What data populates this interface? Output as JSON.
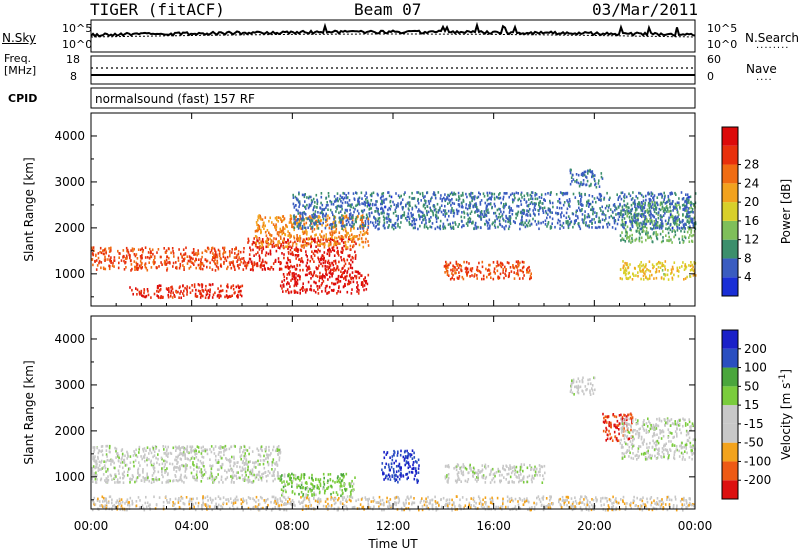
{
  "header": {
    "station": "TIGER (fitACF)",
    "beam": "Beam 07",
    "date": "03/Mar/2011"
  },
  "params_panel": {
    "nsky_label": "N.Sky",
    "nsearch_label": "N.Search",
    "nsky_ticks": [
      "10^5",
      "10^0"
    ],
    "nsky_right_ticks": [
      "10^5",
      "10^0"
    ],
    "freq_label_line1": "Freq.",
    "freq_label_line2": "[MHz]",
    "freq_ticks": [
      "18",
      "8"
    ],
    "nave_label": "Nave",
    "nave_ticks": [
      "60",
      "0"
    ],
    "cpid_label": "CPID",
    "cpid_text": "normalsound (fast) 157 RF"
  },
  "colors": {
    "power": [
      "#1a2fd6",
      "#3a5cc0",
      "#3c8f6c",
      "#7fbf5a",
      "#d8d02a",
      "#f2a21e",
      "#f06c12",
      "#e8300c",
      "#dd0a0a"
    ],
    "velocity": [
      "#dd1010",
      "#ee5a14",
      "#f3a31c",
      "#c8c8c8",
      "#c8c8c8",
      "#7acc3c",
      "#4aa63c",
      "#2a4fc0",
      "#1a20c8"
    ]
  },
  "chart_data": [
    {
      "type": "heatmap",
      "name": "power",
      "ylabel": "Slant Range [km]",
      "yticks": [
        1000,
        2000,
        3000,
        4000
      ],
      "ylim": [
        300,
        4500
      ],
      "xticks": [
        "00:00",
        "04:00",
        "08:00",
        "12:00",
        "16:00",
        "20:00",
        "00:00"
      ],
      "xlim_hours": [
        0,
        24
      ],
      "colorbar": {
        "label": "Power [dB]",
        "ticks": [
          "4",
          "8",
          "12",
          "16",
          "20",
          "24",
          "28"
        ],
        "range": [
          0,
          30
        ]
      },
      "regions": [
        {
          "t0": 0.0,
          "t1": 6.2,
          "r0": 1100,
          "r1": 1600,
          "value": 24
        },
        {
          "t0": 6.2,
          "t1": 10.5,
          "r0": 1100,
          "r1": 1800,
          "value": 27
        },
        {
          "t0": 1.5,
          "t1": 6.0,
          "r0": 500,
          "r1": 800,
          "value": 26
        },
        {
          "t0": 7.5,
          "t1": 11.0,
          "r0": 600,
          "r1": 1100,
          "value": 28
        },
        {
          "t0": 6.5,
          "t1": 11.0,
          "r0": 1600,
          "r1": 2300,
          "value": 20
        },
        {
          "t0": 14.0,
          "t1": 17.5,
          "r0": 900,
          "r1": 1300,
          "value": 24
        },
        {
          "t0": 21.0,
          "t1": 24.0,
          "r0": 900,
          "r1": 1300,
          "value": 16
        },
        {
          "t0": 21.0,
          "t1": 24.0,
          "r0": 1700,
          "r1": 2600,
          "value": 10
        },
        {
          "t0": 19.0,
          "t1": 20.3,
          "r0": 2900,
          "r1": 3300,
          "value": 6
        },
        {
          "t0": 8.0,
          "t1": 24.0,
          "r0": 2000,
          "r1": 2800,
          "value": 6
        }
      ]
    },
    {
      "type": "heatmap",
      "name": "velocity",
      "ylabel": "Slant Range [km]",
      "yticks": [
        1000,
        2000,
        3000,
        4000
      ],
      "ylim": [
        300,
        4500
      ],
      "xticks": [
        "00:00",
        "04:00",
        "08:00",
        "12:00",
        "16:00",
        "20:00",
        "00:00"
      ],
      "xlim_hours": [
        0,
        24
      ],
      "xlabel": "Time UT",
      "colorbar": {
        "label": "Velocity [m s",
        "label_sup": "-1",
        "label_end": "]",
        "ticks": [
          "200",
          "100",
          "50",
          "15",
          "-15",
          "-50",
          "-100",
          "-200"
        ],
        "range": [
          -250,
          250
        ]
      },
      "regions": [
        {
          "t0": 0.0,
          "t1": 7.5,
          "r0": 900,
          "r1": 1700,
          "value": 0
        },
        {
          "t0": 7.5,
          "t1": 10.5,
          "r0": 600,
          "r1": 1100,
          "value": 60
        },
        {
          "t0": 11.5,
          "t1": 13.0,
          "r0": 900,
          "r1": 1600,
          "value": 200
        },
        {
          "t0": 14.0,
          "t1": 18.0,
          "r0": 900,
          "r1": 1300,
          "value": 0
        },
        {
          "t0": 20.3,
          "t1": 21.5,
          "r0": 1800,
          "r1": 2400,
          "value": -200
        },
        {
          "t0": 21.0,
          "t1": 24.0,
          "r0": 1400,
          "r1": 2300,
          "value": 0
        },
        {
          "t0": 19.0,
          "t1": 20.0,
          "r0": 2800,
          "r1": 3200,
          "value": 0
        },
        {
          "t0": 0.0,
          "t1": 24.0,
          "r0": 300,
          "r1": 600,
          "value": -60
        }
      ]
    }
  ]
}
